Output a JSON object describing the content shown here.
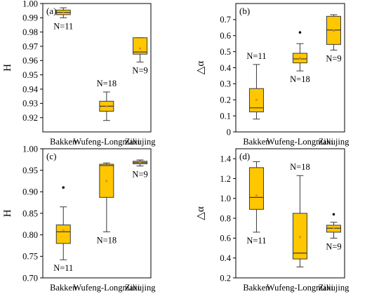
{
  "colors": {
    "box_fill": "#FFC700",
    "box_stroke": "#3a3a3a",
    "mean_marker": "#E0862B",
    "outlier": "#111111",
    "axis": "#000000"
  },
  "chart_data": [
    {
      "type": "box",
      "panel": "(a)",
      "ylabel": "H",
      "ylim": [
        0.91,
        1.0
      ],
      "yticks": [
        0.92,
        0.93,
        0.94,
        0.95,
        0.96,
        0.97,
        0.98,
        0.99,
        1.0
      ],
      "ytick_labels": [
        "0.92",
        "0.93",
        "0.94",
        "0.95",
        "0.96",
        "0.97",
        "0.98",
        "0.99",
        "1.00"
      ],
      "categories": [
        "Bakken",
        "Wufeng-Longmaxi",
        "Ziliujing"
      ],
      "boxes": [
        {
          "category": "Bakken",
          "whisker_low": 0.99,
          "q1": 0.9922,
          "median": 0.9938,
          "q3": 0.9954,
          "whisker_high": 0.997,
          "mean": 0.9938,
          "outliers": [],
          "n_label": "N=11",
          "n_label_position": "below"
        },
        {
          "category": "Wufeng-Longmaxi",
          "whisker_low": 0.918,
          "q1": 0.9245,
          "median": 0.928,
          "q3": 0.9315,
          "whisker_high": 0.938,
          "mean": 0.928,
          "outliers": [],
          "n_label": "N=18",
          "n_label_position": "above"
        },
        {
          "category": "Ziliujing",
          "whisker_low": 0.959,
          "q1": 0.9645,
          "median": 0.966,
          "q3": 0.976,
          "whisker_high": 0.976,
          "mean": 0.9685,
          "outliers": [],
          "n_label": "N=9",
          "n_label_position": "below"
        }
      ]
    },
    {
      "type": "box",
      "panel": "(b)",
      "ylabel": "△α",
      "ylim": [
        0,
        0.8
      ],
      "yticks": [
        0,
        0.1,
        0.2,
        0.3,
        0.4,
        0.5,
        0.6,
        0.7
      ],
      "ytick_labels": [
        "0",
        "0.1",
        "0.2",
        "0.3",
        "0.4",
        "0.5",
        "0.6",
        "0.7"
      ],
      "categories": [
        "Bakken",
        "Wufeng-Longmaxi",
        "Ziliujing"
      ],
      "boxes": [
        {
          "category": "Bakken",
          "whisker_low": 0.08,
          "q1": 0.125,
          "median": 0.15,
          "q3": 0.27,
          "whisker_high": 0.42,
          "mean": 0.2,
          "outliers": [],
          "n_label": "N=11",
          "n_label_position": "above"
        },
        {
          "category": "Wufeng-Longmaxi",
          "whisker_low": 0.38,
          "q1": 0.43,
          "median": 0.455,
          "q3": 0.49,
          "whisker_high": 0.55,
          "mean": 0.46,
          "outliers": [
            0.62
          ],
          "n_label": "N=18",
          "n_label_position": "below"
        },
        {
          "category": "Ziliujing",
          "whisker_low": 0.51,
          "q1": 0.545,
          "median": 0.635,
          "q3": 0.72,
          "whisker_high": 0.73,
          "mean": 0.63,
          "outliers": [],
          "n_label": "N=9",
          "n_label_position": "below"
        }
      ]
    },
    {
      "type": "box",
      "panel": "(c)",
      "ylabel": "H",
      "ylim": [
        0.7,
        1.0
      ],
      "yticks": [
        0.7,
        0.75,
        0.8,
        0.85,
        0.9,
        0.95,
        1.0
      ],
      "ytick_labels": [
        "0.70",
        "0.75",
        "0.80",
        "0.85",
        "0.90",
        "0.95",
        "1.00"
      ],
      "categories": [
        "Bakken",
        "Wufeng-Longmaxi",
        "Ziliujing"
      ],
      "boxes": [
        {
          "category": "Bakken",
          "whisker_low": 0.742,
          "q1": 0.78,
          "median": 0.807,
          "q3": 0.823,
          "whisker_high": 0.865,
          "mean": 0.81,
          "outliers": [
            0.91
          ],
          "n_label": "N=11",
          "n_label_position": "below"
        },
        {
          "category": "Wufeng-Longmaxi",
          "whisker_low": 0.807,
          "q1": 0.887,
          "median": 0.961,
          "q3": 0.964,
          "whisker_high": 0.967,
          "mean": 0.925,
          "outliers": [],
          "n_label": "N=18",
          "n_label_position": "below"
        },
        {
          "category": "Ziliujing",
          "whisker_low": 0.96,
          "q1": 0.965,
          "median": 0.968,
          "q3": 0.971,
          "whisker_high": 0.974,
          "mean": 0.968,
          "outliers": [],
          "n_label": "N=9",
          "n_label_position": "below"
        }
      ]
    },
    {
      "type": "box",
      "panel": "(d)",
      "ylabel": "△α",
      "ylim": [
        0.2,
        1.5
      ],
      "yticks": [
        0.2,
        0.4,
        0.6,
        0.8,
        1.0,
        1.2,
        1.4
      ],
      "ytick_labels": [
        "0.2",
        "0.4",
        "0.6",
        "0.8",
        "1.0",
        "1.2",
        "1.4"
      ],
      "categories": [
        "Bakken",
        "Wufeng-Longmaxi",
        "Ziliujing"
      ],
      "boxes": [
        {
          "category": "Bakken",
          "whisker_low": 0.66,
          "q1": 0.89,
          "median": 1.01,
          "q3": 1.31,
          "whisker_high": 1.37,
          "mean": 1.03,
          "outliers": [],
          "n_label": "N=11",
          "n_label_position": "below"
        },
        {
          "category": "Wufeng-Longmaxi",
          "whisker_low": 0.31,
          "q1": 0.39,
          "median": 0.45,
          "q3": 0.85,
          "whisker_high": 1.23,
          "mean": 0.61,
          "outliers": [],
          "n_label": "N=18",
          "n_label_position": "above"
        },
        {
          "category": "Ziliujing",
          "whisker_low": 0.6,
          "q1": 0.66,
          "median": 0.7,
          "q3": 0.73,
          "whisker_high": 0.76,
          "mean": 0.7,
          "outliers": [
            0.84
          ],
          "n_label": "N=9",
          "n_label_position": "below"
        }
      ]
    }
  ]
}
